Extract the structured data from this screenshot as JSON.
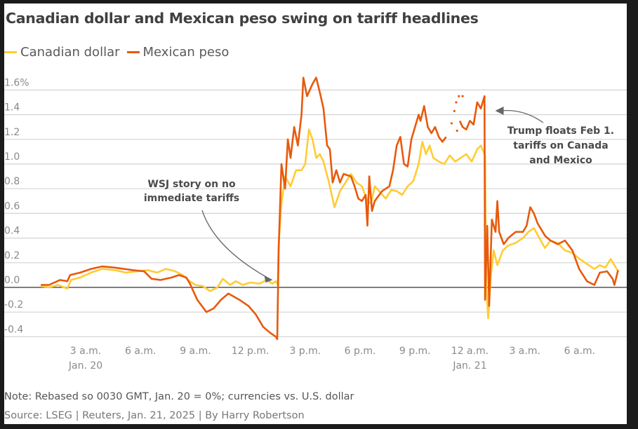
{
  "chart_data": {
    "type": "line",
    "title": "Canadian dollar and Mexican peso swing on tariff headlines",
    "xlabel": "",
    "ylabel": "",
    "x_unit": "hours since 12 a.m. Jan. 20",
    "xlim": [
      0,
      33
    ],
    "ylim": [
      -0.45,
      1.7
    ],
    "y_ticks": [
      1.6,
      1.4,
      1.2,
      1.0,
      0.8,
      0.6,
      0.4,
      0.2,
      0.0,
      -0.2,
      -0.4
    ],
    "y_tick_labels": [
      "1.6%",
      "1.4",
      "1.2",
      "1.0",
      "0.8",
      "0.6",
      "0.4",
      "0.2",
      "0.0",
      "-0.2",
      "-0.4"
    ],
    "x_ticks": [
      3,
      6,
      9,
      12,
      15,
      18,
      21,
      24,
      27,
      30
    ],
    "x_tick_labels": [
      "3 a.m.",
      "6 a.m.",
      "9 a.m.",
      "12 p.m.",
      "3 p.m.",
      "6 p.m.",
      "9 p.m.",
      "12 a.m.",
      "3 a.m.",
      "6 a.m."
    ],
    "x_tick_sublabels": {
      "3": "Jan. 20",
      "24": "Jan. 21"
    },
    "grid": true,
    "legend": "top-left",
    "series": [
      {
        "name": "Canadian dollar",
        "color": "#ffcc33",
        "segments": [
          [
            [
              0.55,
              0.01
            ],
            [
              1.0,
              0.0
            ],
            [
              1.5,
              0.02
            ],
            [
              2.0,
              -0.01
            ],
            [
              2.2,
              0.06
            ],
            [
              2.7,
              0.08
            ],
            [
              3.3,
              0.12
            ],
            [
              3.9,
              0.15
            ],
            [
              4.6,
              0.14
            ],
            [
              5.2,
              0.12
            ],
            [
              5.8,
              0.13
            ],
            [
              6.4,
              0.14
            ],
            [
              6.9,
              0.12
            ],
            [
              7.4,
              0.15
            ],
            [
              7.9,
              0.13
            ],
            [
              8.3,
              0.1
            ],
            [
              8.6,
              0.06
            ],
            [
              9.0,
              0.02
            ],
            [
              9.4,
              0.01
            ],
            [
              9.8,
              -0.03
            ],
            [
              10.2,
              0.0
            ],
            [
              10.5,
              0.07
            ],
            [
              10.9,
              0.02
            ],
            [
              11.2,
              0.05
            ],
            [
              11.6,
              0.02
            ],
            [
              12.0,
              0.04
            ],
            [
              12.5,
              0.03
            ],
            [
              12.9,
              0.06
            ],
            [
              13.2,
              0.03
            ],
            [
              13.4,
              0.05
            ],
            [
              13.5,
              0.02
            ],
            [
              13.55,
              0.35
            ],
            [
              13.7,
              0.68
            ],
            [
              13.9,
              0.9
            ],
            [
              14.2,
              0.82
            ],
            [
              14.5,
              0.95
            ],
            [
              14.8,
              0.95
            ],
            [
              15.0,
              1.0
            ],
            [
              15.2,
              1.28
            ],
            [
              15.4,
              1.2
            ],
            [
              15.6,
              1.05
            ],
            [
              15.8,
              1.08
            ],
            [
              16.0,
              1.02
            ],
            [
              16.3,
              0.85
            ],
            [
              16.6,
              0.65
            ],
            [
              16.9,
              0.78
            ],
            [
              17.2,
              0.85
            ],
            [
              17.5,
              0.92
            ],
            [
              17.8,
              0.85
            ],
            [
              18.1,
              0.82
            ],
            [
              18.4,
              0.7
            ],
            [
              18.6,
              0.68
            ],
            [
              18.8,
              0.82
            ],
            [
              19.1,
              0.77
            ],
            [
              19.4,
              0.72
            ],
            [
              19.7,
              0.79
            ],
            [
              20.0,
              0.78
            ],
            [
              20.3,
              0.75
            ],
            [
              20.6,
              0.82
            ],
            [
              20.9,
              0.86
            ],
            [
              21.2,
              1.0
            ],
            [
              21.4,
              1.18
            ],
            [
              21.6,
              1.08
            ],
            [
              21.8,
              1.15
            ],
            [
              22.0,
              1.05
            ],
            [
              22.3,
              1.02
            ],
            [
              22.6,
              1.0
            ],
            [
              22.9,
              1.07
            ],
            [
              23.2,
              1.02
            ],
            [
              23.5,
              1.05
            ],
            [
              23.8,
              1.08
            ],
            [
              24.1,
              1.02
            ],
            [
              24.4,
              1.12
            ],
            [
              24.6,
              1.15
            ],
            [
              24.83,
              1.07
            ],
            [
              24.9,
              0.0
            ],
            [
              25.0,
              -0.25
            ],
            [
              25.15,
              0.1
            ],
            [
              25.3,
              0.3
            ],
            [
              25.5,
              0.18
            ],
            [
              25.8,
              0.3
            ],
            [
              26.1,
              0.34
            ],
            [
              26.5,
              0.36
            ],
            [
              26.9,
              0.4
            ],
            [
              27.2,
              0.45
            ],
            [
              27.5,
              0.48
            ],
            [
              27.8,
              0.4
            ],
            [
              28.1,
              0.32
            ],
            [
              28.4,
              0.38
            ],
            [
              28.8,
              0.36
            ],
            [
              29.2,
              0.3
            ],
            [
              29.6,
              0.28
            ],
            [
              30.0,
              0.23
            ],
            [
              30.4,
              0.19
            ],
            [
              30.8,
              0.15
            ],
            [
              31.1,
              0.18
            ],
            [
              31.4,
              0.16
            ],
            [
              31.7,
              0.23
            ],
            [
              31.9,
              0.18
            ],
            [
              32.1,
              0.13
            ]
          ]
        ]
      },
      {
        "name": "Mexican peso",
        "color": "#e8590c",
        "segments": [
          [
            [
              0.55,
              0.02
            ],
            [
              1.0,
              0.02
            ],
            [
              1.6,
              0.06
            ],
            [
              2.0,
              0.05
            ],
            [
              2.15,
              0.1
            ],
            [
              2.7,
              0.12
            ],
            [
              3.3,
              0.15
            ],
            [
              3.9,
              0.17
            ],
            [
              4.6,
              0.16
            ],
            [
              5.6,
              0.14
            ],
            [
              6.2,
              0.13
            ],
            [
              6.6,
              0.07
            ],
            [
              7.1,
              0.06
            ],
            [
              7.7,
              0.08
            ],
            [
              8.1,
              0.1
            ],
            [
              8.5,
              0.08
            ],
            [
              8.7,
              0.03
            ],
            [
              9.1,
              -0.1
            ],
            [
              9.6,
              -0.2
            ],
            [
              10.0,
              -0.17
            ],
            [
              10.4,
              -0.1
            ],
            [
              10.8,
              -0.05
            ],
            [
              11.4,
              -0.1
            ],
            [
              11.9,
              -0.15
            ],
            [
              12.3,
              -0.22
            ],
            [
              12.7,
              -0.32
            ],
            [
              13.1,
              -0.37
            ],
            [
              13.4,
              -0.4
            ],
            [
              13.47,
              -0.42
            ],
            [
              13.55,
              0.3
            ],
            [
              13.7,
              1.0
            ],
            [
              13.9,
              0.8
            ],
            [
              14.05,
              1.2
            ],
            [
              14.2,
              1.05
            ],
            [
              14.4,
              1.3
            ],
            [
              14.6,
              1.15
            ],
            [
              14.8,
              1.4
            ],
            [
              14.9,
              1.7
            ],
            [
              15.1,
              1.55
            ],
            [
              15.4,
              1.65
            ],
            [
              15.6,
              1.7
            ],
            [
              15.8,
              1.58
            ],
            [
              16.0,
              1.45
            ],
            [
              16.2,
              1.15
            ],
            [
              16.35,
              1.12
            ],
            [
              16.5,
              0.85
            ],
            [
              16.7,
              0.95
            ],
            [
              16.9,
              0.85
            ],
            [
              17.1,
              0.92
            ],
            [
              17.5,
              0.9
            ],
            [
              17.7,
              0.82
            ],
            [
              17.9,
              0.72
            ],
            [
              18.1,
              0.7
            ],
            [
              18.3,
              0.75
            ],
            [
              18.4,
              0.5
            ],
            [
              18.5,
              0.9
            ],
            [
              18.65,
              0.62
            ],
            [
              18.8,
              0.7
            ],
            [
              19.2,
              0.78
            ],
            [
              19.6,
              0.82
            ],
            [
              19.8,
              0.95
            ],
            [
              20.0,
              1.15
            ],
            [
              20.2,
              1.22
            ],
            [
              20.4,
              1.0
            ],
            [
              20.6,
              0.98
            ],
            [
              20.8,
              1.2
            ],
            [
              21.0,
              1.3
            ],
            [
              21.2,
              1.4
            ],
            [
              21.3,
              1.35
            ],
            [
              21.5,
              1.47
            ],
            [
              21.7,
              1.3
            ],
            [
              21.9,
              1.25
            ],
            [
              22.1,
              1.3
            ],
            [
              22.3,
              1.22
            ],
            [
              22.5,
              1.18
            ],
            [
              22.7,
              1.22
            ]
          ],
          [
            [
              23.45,
              1.35
            ],
            [
              23.6,
              1.3
            ],
            [
              23.8,
              1.28
            ],
            [
              24.0,
              1.35
            ],
            [
              24.2,
              1.32
            ],
            [
              24.4,
              1.5
            ],
            [
              24.6,
              1.45
            ],
            [
              24.8,
              1.55
            ],
            [
              24.83,
              -0.1
            ],
            [
              24.95,
              0.5
            ],
            [
              25.05,
              -0.15
            ],
            [
              25.2,
              0.55
            ],
            [
              25.4,
              0.45
            ],
            [
              25.5,
              0.7
            ],
            [
              25.6,
              0.45
            ],
            [
              25.85,
              0.35
            ],
            [
              26.1,
              0.4
            ],
            [
              26.5,
              0.45
            ],
            [
              26.9,
              0.45
            ],
            [
              27.1,
              0.5
            ],
            [
              27.3,
              0.65
            ],
            [
              27.5,
              0.6
            ],
            [
              27.7,
              0.52
            ],
            [
              28.1,
              0.42
            ],
            [
              28.4,
              0.38
            ],
            [
              28.8,
              0.35
            ],
            [
              29.2,
              0.38
            ],
            [
              29.6,
              0.3
            ],
            [
              29.97,
              0.15
            ],
            [
              30.4,
              0.05
            ],
            [
              30.8,
              0.02
            ],
            [
              31.1,
              0.12
            ],
            [
              31.5,
              0.13
            ],
            [
              31.8,
              0.07
            ],
            [
              31.9,
              0.02
            ],
            [
              32.1,
              0.14
            ]
          ]
        ],
        "dots": [
          [
            23.0,
            1.33
          ],
          [
            23.15,
            1.43
          ],
          [
            23.25,
            1.5
          ],
          [
            23.4,
            1.55
          ],
          [
            23.6,
            1.55
          ],
          [
            23.3,
            1.27
          ]
        ]
      }
    ],
    "annotations": [
      {
        "lines": [
          "WSJ story on no",
          "immediate tariffs"
        ],
        "points_to": [
          13.3,
          0.05
        ]
      },
      {
        "lines": [
          "Trump floats Feb 1.",
          "tariffs on Canada",
          "and Mexico"
        ],
        "points_to": [
          25.0,
          1.5
        ]
      }
    ]
  },
  "title": "Canadian dollar and Mexican peso swing on tariff headlines",
  "legend": [
    {
      "label": "Canadian dollar",
      "color": "#ffcc33"
    },
    {
      "label": "Mexican peso",
      "color": "#e8590c"
    }
  ],
  "note": "Note: Rebased so 0030 GMT, Jan. 20 = 0%; currencies vs. U.S. dollar",
  "source": "Source: LSEG | Reuters, Jan. 21, 2025 | By Harry Robertson"
}
